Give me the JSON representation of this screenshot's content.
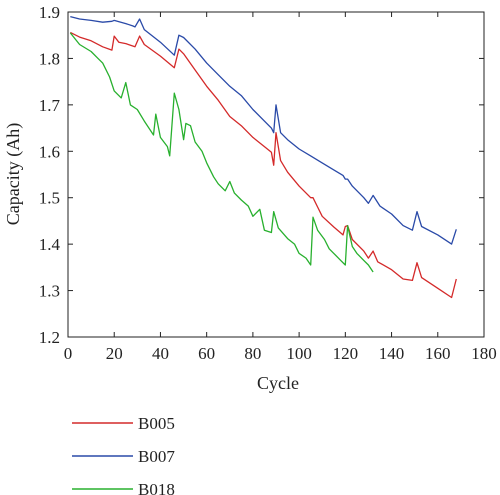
{
  "chart_data": {
    "type": "line",
    "xlabel": "Cycle",
    "ylabel": "Capacity (Ah)",
    "xlim": [
      0,
      180
    ],
    "ylim": [
      1.2,
      1.9
    ],
    "xticks": [
      "0",
      "20",
      "40",
      "60",
      "80",
      "100",
      "120",
      "140",
      "160",
      "180"
    ],
    "yticks": [
      "1.2",
      "1.3",
      "1.4",
      "1.5",
      "1.6",
      "1.7",
      "1.8",
      "1.9"
    ],
    "legend_position": "below-left",
    "series": [
      {
        "name": "B005",
        "color": "#d42a2a",
        "points": [
          [
            1,
            1.856
          ],
          [
            5,
            1.846
          ],
          [
            10,
            1.838
          ],
          [
            15,
            1.825
          ],
          [
            19,
            1.818
          ],
          [
            20,
            1.848
          ],
          [
            22,
            1.835
          ],
          [
            25,
            1.832
          ],
          [
            29,
            1.825
          ],
          [
            31,
            1.848
          ],
          [
            33,
            1.83
          ],
          [
            40,
            1.805
          ],
          [
            46,
            1.78
          ],
          [
            48,
            1.82
          ],
          [
            50,
            1.81
          ],
          [
            55,
            1.775
          ],
          [
            60,
            1.74
          ],
          [
            65,
            1.71
          ],
          [
            70,
            1.675
          ],
          [
            75,
            1.655
          ],
          [
            80,
            1.63
          ],
          [
            85,
            1.61
          ],
          [
            88,
            1.598
          ],
          [
            89,
            1.57
          ],
          [
            90,
            1.64
          ],
          [
            92,
            1.58
          ],
          [
            95,
            1.555
          ],
          [
            100,
            1.525
          ],
          [
            105,
            1.5
          ],
          [
            106,
            1.5
          ],
          [
            108,
            1.48
          ],
          [
            110,
            1.46
          ],
          [
            115,
            1.437
          ],
          [
            119,
            1.42
          ],
          [
            120,
            1.438
          ],
          [
            121,
            1.44
          ],
          [
            123,
            1.41
          ],
          [
            128,
            1.385
          ],
          [
            130,
            1.37
          ],
          [
            132,
            1.385
          ],
          [
            134,
            1.362
          ],
          [
            140,
            1.345
          ],
          [
            145,
            1.325
          ],
          [
            149,
            1.322
          ],
          [
            151,
            1.36
          ],
          [
            153,
            1.328
          ],
          [
            160,
            1.305
          ],
          [
            166,
            1.285
          ],
          [
            168,
            1.325
          ]
        ]
      },
      {
        "name": "B007",
        "color": "#2a4aa8",
        "points": [
          [
            1,
            1.89
          ],
          [
            5,
            1.885
          ],
          [
            10,
            1.882
          ],
          [
            15,
            1.878
          ],
          [
            19,
            1.88
          ],
          [
            20,
            1.882
          ],
          [
            25,
            1.875
          ],
          [
            28,
            1.87
          ],
          [
            29,
            1.868
          ],
          [
            31,
            1.885
          ],
          [
            33,
            1.862
          ],
          [
            40,
            1.835
          ],
          [
            46,
            1.807
          ],
          [
            48,
            1.85
          ],
          [
            50,
            1.845
          ],
          [
            55,
            1.82
          ],
          [
            60,
            1.79
          ],
          [
            65,
            1.765
          ],
          [
            70,
            1.74
          ],
          [
            75,
            1.72
          ],
          [
            80,
            1.69
          ],
          [
            85,
            1.665
          ],
          [
            88,
            1.65
          ],
          [
            89,
            1.64
          ],
          [
            90,
            1.7
          ],
          [
            92,
            1.64
          ],
          [
            95,
            1.625
          ],
          [
            100,
            1.605
          ],
          [
            105,
            1.59
          ],
          [
            110,
            1.575
          ],
          [
            115,
            1.56
          ],
          [
            119,
            1.548
          ],
          [
            120,
            1.54
          ],
          [
            121,
            1.54
          ],
          [
            123,
            1.525
          ],
          [
            128,
            1.5
          ],
          [
            130,
            1.488
          ],
          [
            132,
            1.505
          ],
          [
            135,
            1.482
          ],
          [
            140,
            1.465
          ],
          [
            145,
            1.44
          ],
          [
            149,
            1.43
          ],
          [
            151,
            1.47
          ],
          [
            153,
            1.438
          ],
          [
            160,
            1.42
          ],
          [
            166,
            1.4
          ],
          [
            168,
            1.432
          ]
        ]
      },
      {
        "name": "B018",
        "color": "#28b02e",
        "points": [
          [
            1,
            1.855
          ],
          [
            5,
            1.83
          ],
          [
            10,
            1.815
          ],
          [
            13,
            1.8
          ],
          [
            15,
            1.79
          ],
          [
            18,
            1.76
          ],
          [
            20,
            1.73
          ],
          [
            23,
            1.715
          ],
          [
            25,
            1.748
          ],
          [
            27,
            1.7
          ],
          [
            30,
            1.69
          ],
          [
            33,
            1.665
          ],
          [
            37,
            1.635
          ],
          [
            38,
            1.68
          ],
          [
            40,
            1.63
          ],
          [
            43,
            1.61
          ],
          [
            44,
            1.59
          ],
          [
            46,
            1.725
          ],
          [
            48,
            1.69
          ],
          [
            50,
            1.625
          ],
          [
            51,
            1.66
          ],
          [
            53,
            1.655
          ],
          [
            55,
            1.62
          ],
          [
            58,
            1.6
          ],
          [
            60,
            1.575
          ],
          [
            63,
            1.545
          ],
          [
            65,
            1.53
          ],
          [
            68,
            1.515
          ],
          [
            70,
            1.535
          ],
          [
            72,
            1.51
          ],
          [
            75,
            1.495
          ],
          [
            78,
            1.482
          ],
          [
            80,
            1.46
          ],
          [
            83,
            1.475
          ],
          [
            85,
            1.43
          ],
          [
            88,
            1.425
          ],
          [
            89,
            1.47
          ],
          [
            91,
            1.435
          ],
          [
            95,
            1.412
          ],
          [
            98,
            1.4
          ],
          [
            100,
            1.38
          ],
          [
            103,
            1.37
          ],
          [
            105,
            1.355
          ],
          [
            106,
            1.458
          ],
          [
            108,
            1.43
          ],
          [
            111,
            1.41
          ],
          [
            113,
            1.39
          ],
          [
            115,
            1.38
          ],
          [
            118,
            1.365
          ],
          [
            120,
            1.355
          ],
          [
            121,
            1.44
          ],
          [
            123,
            1.395
          ],
          [
            125,
            1.38
          ],
          [
            128,
            1.365
          ],
          [
            130,
            1.355
          ],
          [
            132,
            1.34
          ]
        ]
      }
    ]
  }
}
